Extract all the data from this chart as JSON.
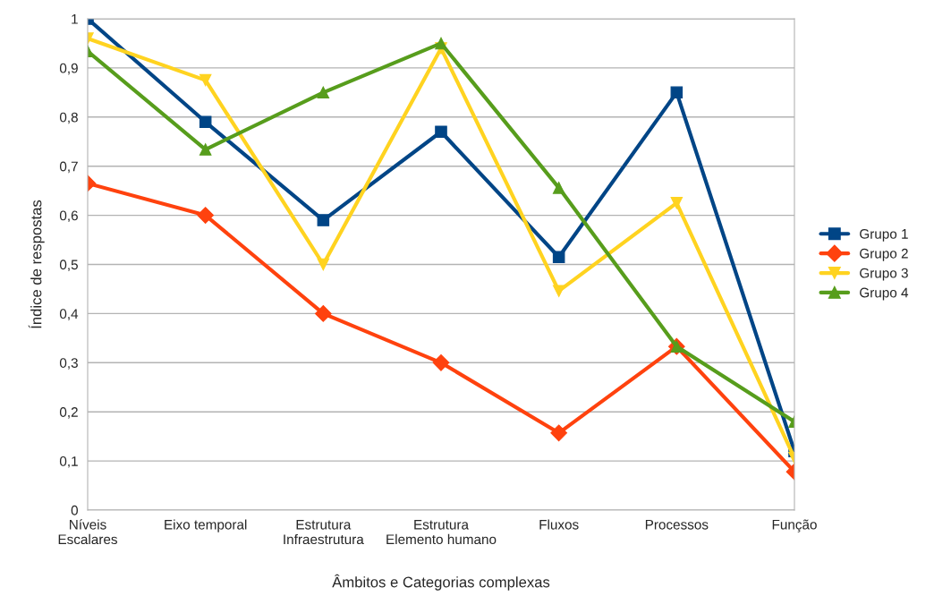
{
  "chart_data": {
    "type": "line",
    "xlabel": "Âmbitos e Categorias complexas",
    "ylabel": "Índice de respostas",
    "categories": [
      "Níveis\nEscalares",
      "Eixo temporal",
      "Estrutura\nInfraestrutura",
      "Estrutura\nElemento humano",
      "Fluxos",
      "Processos",
      "Função"
    ],
    "series": [
      {
        "name": "Grupo 1",
        "color": "#004586",
        "marker": "square",
        "values": [
          1,
          0.79,
          0.59,
          0.77,
          0.515,
          0.85,
          0.12
        ]
      },
      {
        "name": "Grupo 2",
        "color": "#ff420e",
        "marker": "diamond",
        "values": [
          0.665,
          0.6,
          0.4,
          0.3,
          0.157,
          0.333,
          0.078
        ]
      },
      {
        "name": "Grupo 3",
        "color": "#ffd320",
        "marker": "triangle_down",
        "values": [
          0.96,
          0.875,
          0.5,
          0.94,
          0.446,
          0.625,
          0.106
        ]
      },
      {
        "name": "Grupo 4",
        "color": "#579d1c",
        "marker": "triangle",
        "values": [
          0.934,
          0.734,
          0.85,
          0.95,
          0.656,
          0.333,
          0.18
        ]
      }
    ],
    "ylim": [
      0,
      1
    ],
    "yticks": [
      0,
      {
        "value": 0.1,
        "label": "0,1"
      },
      {
        "value": 0.2,
        "label": "0,2"
      },
      {
        "value": 0.3,
        "label": "0,3"
      },
      {
        "value": 0.4,
        "label": "0,4"
      },
      {
        "value": 0.5,
        "label": "0,5"
      },
      {
        "value": 0.6,
        "label": "0,6"
      },
      {
        "value": 0.7,
        "label": "0,7"
      },
      {
        "value": 0.8,
        "label": "0,8"
      },
      {
        "value": 0.9,
        "label": "0,9"
      },
      1
    ],
    "grid": "y",
    "legend": "right",
    "line_style": "solid"
  }
}
